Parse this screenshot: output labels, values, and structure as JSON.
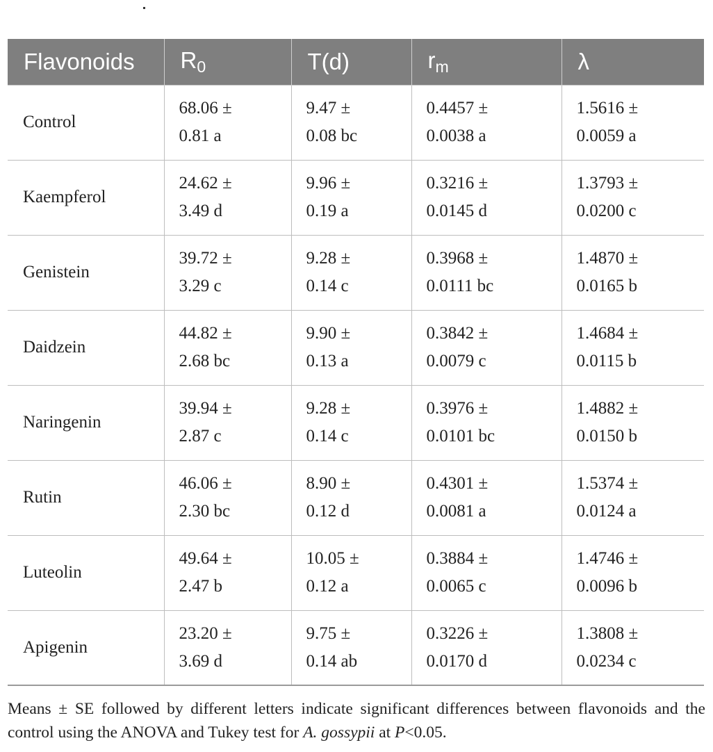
{
  "headers": {
    "flavonoids": "Flavonoids",
    "r0_base": "R",
    "r0_sub": "0",
    "t": "T(d)",
    "rm_base": "r",
    "rm_sub": "m",
    "lambda": "λ"
  },
  "rows": [
    {
      "name": "Control",
      "r0": [
        "68.06 ±",
        "0.81 a"
      ],
      "t": [
        "9.47 ±",
        "0.08 bc"
      ],
      "rm": [
        "0.4457 ±",
        "0.0038 a"
      ],
      "lambda": [
        "1.5616 ±",
        "0.0059 a"
      ]
    },
    {
      "name": "Kaempferol",
      "r0": [
        "24.62 ±",
        "3.49 d"
      ],
      "t": [
        "9.96 ±",
        "0.19 a"
      ],
      "rm": [
        "0.3216 ±",
        "0.0145 d"
      ],
      "lambda": [
        "1.3793 ±",
        "0.0200 c"
      ]
    },
    {
      "name": "Genistein",
      "r0": [
        "39.72 ±",
        "3.29 c"
      ],
      "t": [
        "9.28 ±",
        "0.14 c"
      ],
      "rm": [
        "0.3968 ±",
        "0.0111 bc"
      ],
      "lambda": [
        "1.4870 ±",
        "0.0165 b"
      ]
    },
    {
      "name": "Daidzein",
      "r0": [
        "44.82 ±",
        "2.68 bc"
      ],
      "t": [
        "9.90 ±",
        "0.13 a"
      ],
      "rm": [
        "0.3842 ±",
        "0.0079 c"
      ],
      "lambda": [
        "1.4684 ±",
        "0.0115 b"
      ]
    },
    {
      "name": "Naringenin",
      "r0": [
        "39.94 ±",
        "2.87 c"
      ],
      "t": [
        "9.28 ±",
        "0.14 c"
      ],
      "rm": [
        "0.3976 ±",
        "0.0101 bc"
      ],
      "lambda": [
        "1.4882 ±",
        "0.0150 b"
      ]
    },
    {
      "name": "Rutin",
      "r0": [
        "46.06 ±",
        "2.30 bc"
      ],
      "t": [
        "8.90 ±",
        "0.12 d"
      ],
      "rm": [
        "0.4301 ±",
        "0.0081 a"
      ],
      "lambda": [
        "1.5374 ±",
        "0.0124 a"
      ]
    },
    {
      "name": "Luteolin",
      "r0": [
        "49.64 ±",
        "2.47 b"
      ],
      "t": [
        "10.05 ±",
        "0.12 a"
      ],
      "rm": [
        "0.3884 ±",
        "0.0065 c"
      ],
      "lambda": [
        "1.4746 ±",
        "0.0096 b"
      ]
    },
    {
      "name": "Apigenin",
      "r0": [
        "23.20 ±",
        "3.69 d"
      ],
      "t": [
        "9.75 ±",
        "0.14 ab"
      ],
      "rm": [
        "0.3226 ±",
        "0.0170 d"
      ],
      "lambda": [
        "1.3808 ±",
        "0.0234 c"
      ]
    }
  ],
  "footnote": {
    "before": "Means ± SE followed by different letters indicate significant differences between flavonoids and the control using the ANOVA and Tukey test for ",
    "species": "A. gossypii",
    "middle": " at ",
    "p": "P",
    "after": "<0.05."
  }
}
